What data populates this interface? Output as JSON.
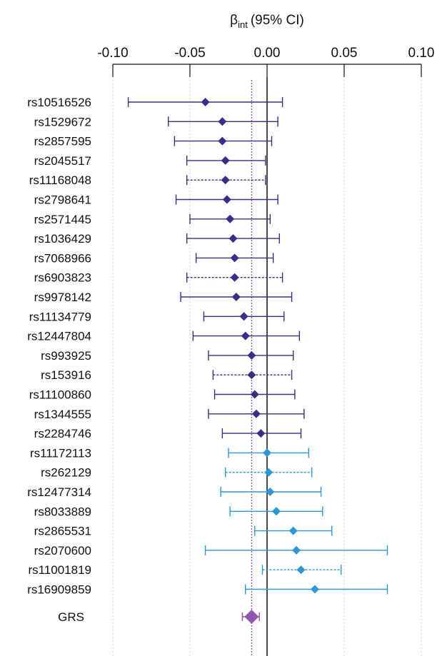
{
  "chart_data": {
    "type": "forest",
    "title": "β_int (95% CI)",
    "title_parts": {
      "symbol": "β",
      "subscript": "int",
      "rest": "(95% CI)"
    },
    "xlim": [
      -0.1,
      0.1
    ],
    "x_ticks": [
      -0.1,
      -0.05,
      0.0,
      0.05,
      0.1
    ],
    "x_tick_labels": [
      "-0.10",
      "-0.05",
      "0.00",
      "0.05",
      "0.10"
    ],
    "axis_position": "top",
    "grid": true,
    "reference_line": 0,
    "pooled_reference_line": -0.01,
    "colors": {
      "negative": "#3b2d86",
      "positive": "#2f97d6",
      "grs": "#9255ad",
      "grid": "#cfcfcf",
      "zero_line": "#111111",
      "axis": "#111111"
    },
    "rows": [
      {
        "label": "rs10516526",
        "estimate": -0.04,
        "lower": -0.09,
        "upper": 0.01
      },
      {
        "label": "rs1529672",
        "estimate": -0.029,
        "lower": -0.064,
        "upper": 0.007
      },
      {
        "label": "rs2857595",
        "estimate": -0.029,
        "lower": -0.06,
        "upper": 0.003
      },
      {
        "label": "rs2045517",
        "estimate": -0.027,
        "lower": -0.052,
        "upper": -0.001
      },
      {
        "label": "rs11168048",
        "estimate": -0.027,
        "lower": -0.052,
        "upper": -0.001,
        "dashed": true
      },
      {
        "label": "rs2798641",
        "estimate": -0.026,
        "lower": -0.059,
        "upper": 0.007
      },
      {
        "label": "rs2571445",
        "estimate": -0.024,
        "lower": -0.05,
        "upper": 0.002
      },
      {
        "label": "rs1036429",
        "estimate": -0.022,
        "lower": -0.052,
        "upper": 0.008
      },
      {
        "label": "rs7068966",
        "estimate": -0.021,
        "lower": -0.046,
        "upper": 0.004
      },
      {
        "label": "rs6903823",
        "estimate": -0.021,
        "lower": -0.052,
        "upper": 0.01,
        "dashed": true
      },
      {
        "label": "rs9978142",
        "estimate": -0.02,
        "lower": -0.056,
        "upper": 0.016
      },
      {
        "label": "rs11134779",
        "estimate": -0.015,
        "lower": -0.041,
        "upper": 0.011
      },
      {
        "label": "rs12447804",
        "estimate": -0.014,
        "lower": -0.048,
        "upper": 0.021
      },
      {
        "label": "rs993925",
        "estimate": -0.01,
        "lower": -0.038,
        "upper": 0.017
      },
      {
        "label": "rs153916",
        "estimate": -0.01,
        "lower": -0.035,
        "upper": 0.016,
        "dashed": true
      },
      {
        "label": "rs11100860",
        "estimate": -0.008,
        "lower": -0.034,
        "upper": 0.018
      },
      {
        "label": "rs1344555",
        "estimate": -0.007,
        "lower": -0.038,
        "upper": 0.024
      },
      {
        "label": "rs2284746",
        "estimate": -0.004,
        "lower": -0.029,
        "upper": 0.022
      },
      {
        "label": "rs11172113",
        "estimate": 0.0,
        "lower": -0.025,
        "upper": 0.027
      },
      {
        "label": "rs262129",
        "estimate": 0.001,
        "lower": -0.027,
        "upper": 0.029,
        "dashed": true
      },
      {
        "label": "rs12477314",
        "estimate": 0.002,
        "lower": -0.03,
        "upper": 0.035
      },
      {
        "label": "rs8033889",
        "estimate": 0.006,
        "lower": -0.024,
        "upper": 0.036
      },
      {
        "label": "rs2865531",
        "estimate": 0.017,
        "lower": -0.008,
        "upper": 0.042
      },
      {
        "label": "rs2070600",
        "estimate": 0.019,
        "lower": -0.04,
        "upper": 0.078
      },
      {
        "label": "rs11001819",
        "estimate": 0.022,
        "lower": -0.003,
        "upper": 0.048,
        "dashed": true
      },
      {
        "label": "rs16909859",
        "estimate": 0.031,
        "lower": -0.014,
        "upper": 0.078
      }
    ],
    "summary": {
      "label": "GRS",
      "estimate": -0.01,
      "lower": -0.016,
      "upper": -0.005
    }
  }
}
